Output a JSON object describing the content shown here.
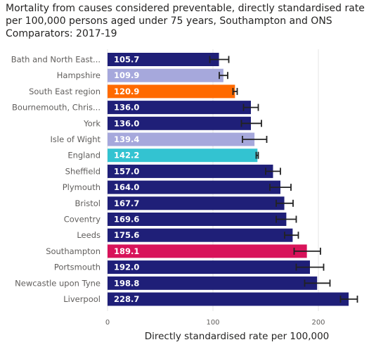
{
  "chart_data": {
    "type": "bar",
    "orientation": "horizontal",
    "title": "Mortality from causes considered preventable, directly standardised rate per 100,000 persons aged under 75 years, Southampton and ONS Comparators: 2017-19",
    "xlabel": "Directly standardised rate per 100,000",
    "ylabel": "",
    "xlim": [
      0,
      235
    ],
    "xticks": [
      0,
      100,
      200
    ],
    "grid": true,
    "categories": [
      "Bath and North East...",
      "Hampshire",
      "South East region",
      "Bournemouth, Chris...",
      "York",
      "Isle of Wight",
      "England",
      "Sheffield",
      "Plymouth",
      "Bristol",
      "Coventry",
      "Leeds",
      "Southampton",
      "Portsmouth",
      "Newcastle upon Tyne",
      "Liverpool"
    ],
    "values": [
      105.7,
      109.9,
      120.9,
      136.0,
      136.0,
      139.4,
      142.2,
      157.0,
      164.0,
      167.7,
      169.6,
      175.6,
      189.1,
      192.0,
      198.8,
      228.7
    ],
    "value_labels": [
      "105.7",
      "109.9",
      "120.9",
      "136.0",
      "136.0",
      "139.4",
      "142.2",
      "157.0",
      "164.0",
      "167.7",
      "169.6",
      "175.6",
      "189.1",
      "192.0",
      "198.8",
      "228.7"
    ],
    "ci_lower": [
      97,
      106,
      119,
      129,
      127,
      128,
      141,
      150,
      154,
      160,
      160,
      168,
      177,
      179,
      187,
      221
    ],
    "ci_upper": [
      115,
      114,
      123,
      143,
      146,
      151,
      143,
      164,
      174,
      176,
      179,
      181,
      202,
      205,
      211,
      237
    ],
    "bar_colors": [
      "#1f1f78",
      "#a6a8dc",
      "#ff6a00",
      "#1f1f78",
      "#1f1f78",
      "#a6a8dc",
      "#33c3d1",
      "#1f1f78",
      "#1f1f78",
      "#1f1f78",
      "#1f1f78",
      "#1f1f78",
      "#d8135a",
      "#1f1f78",
      "#1f1f78",
      "#1f1f78"
    ]
  }
}
